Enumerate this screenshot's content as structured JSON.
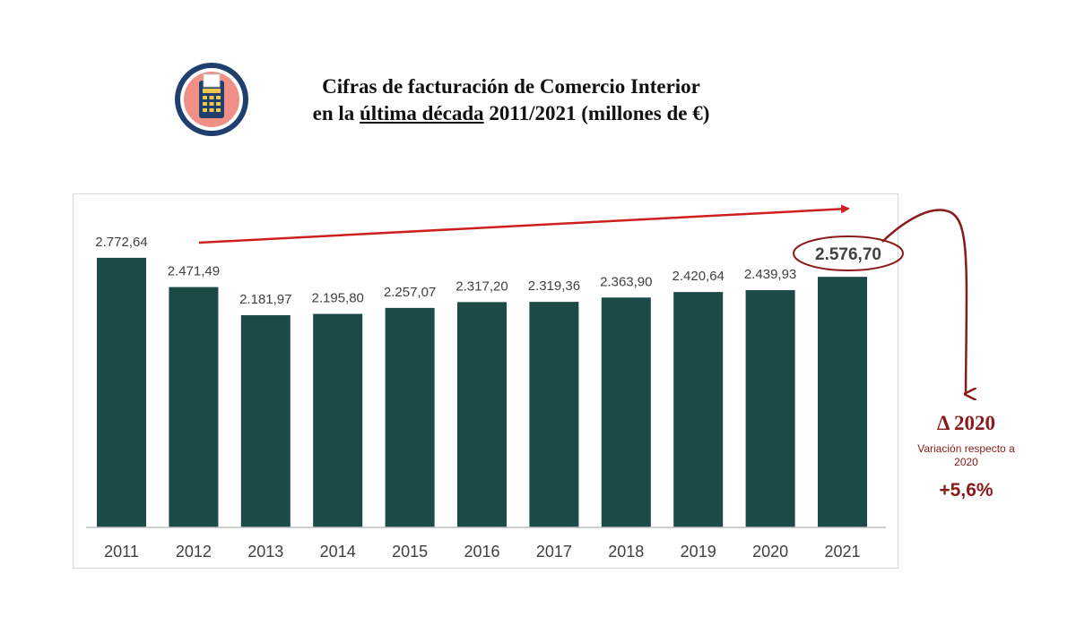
{
  "header": {
    "title_line1": "Cifras de facturación de Comercio Interior",
    "title_line2_a": "en la ",
    "title_line2_underlined": "última década",
    "title_line2_b": " 2011/2021 (millones de €)",
    "logo_icon": "calculator-icon"
  },
  "chart_data": {
    "type": "bar",
    "categories": [
      "2011",
      "2012",
      "2013",
      "2014",
      "2015",
      "2016",
      "2017",
      "2018",
      "2019",
      "2020",
      "2021"
    ],
    "values": [
      2772.64,
      2471.49,
      2181.97,
      2195.8,
      2257.07,
      2317.2,
      2319.36,
      2363.9,
      2420.64,
      2439.93,
      2576.7
    ],
    "value_labels": [
      "2.772,64",
      "2.471,49",
      "2.181,97",
      "2.195,80",
      "2.257,07",
      "2.317,20",
      "2.319,36",
      "2.363,90",
      "2.420,64",
      "2.439,93",
      "2.576,70"
    ],
    "highlight_index": 10,
    "grid": false,
    "legend": "none",
    "colors": {
      "bar": "#1b4a47",
      "accent": "#8b1a1a",
      "arrow": "#cc2020"
    }
  },
  "annotation": {
    "delta_label": "Δ 2020",
    "delta_desc": "Variación respecto a 2020",
    "delta_value": "+5,6%"
  }
}
